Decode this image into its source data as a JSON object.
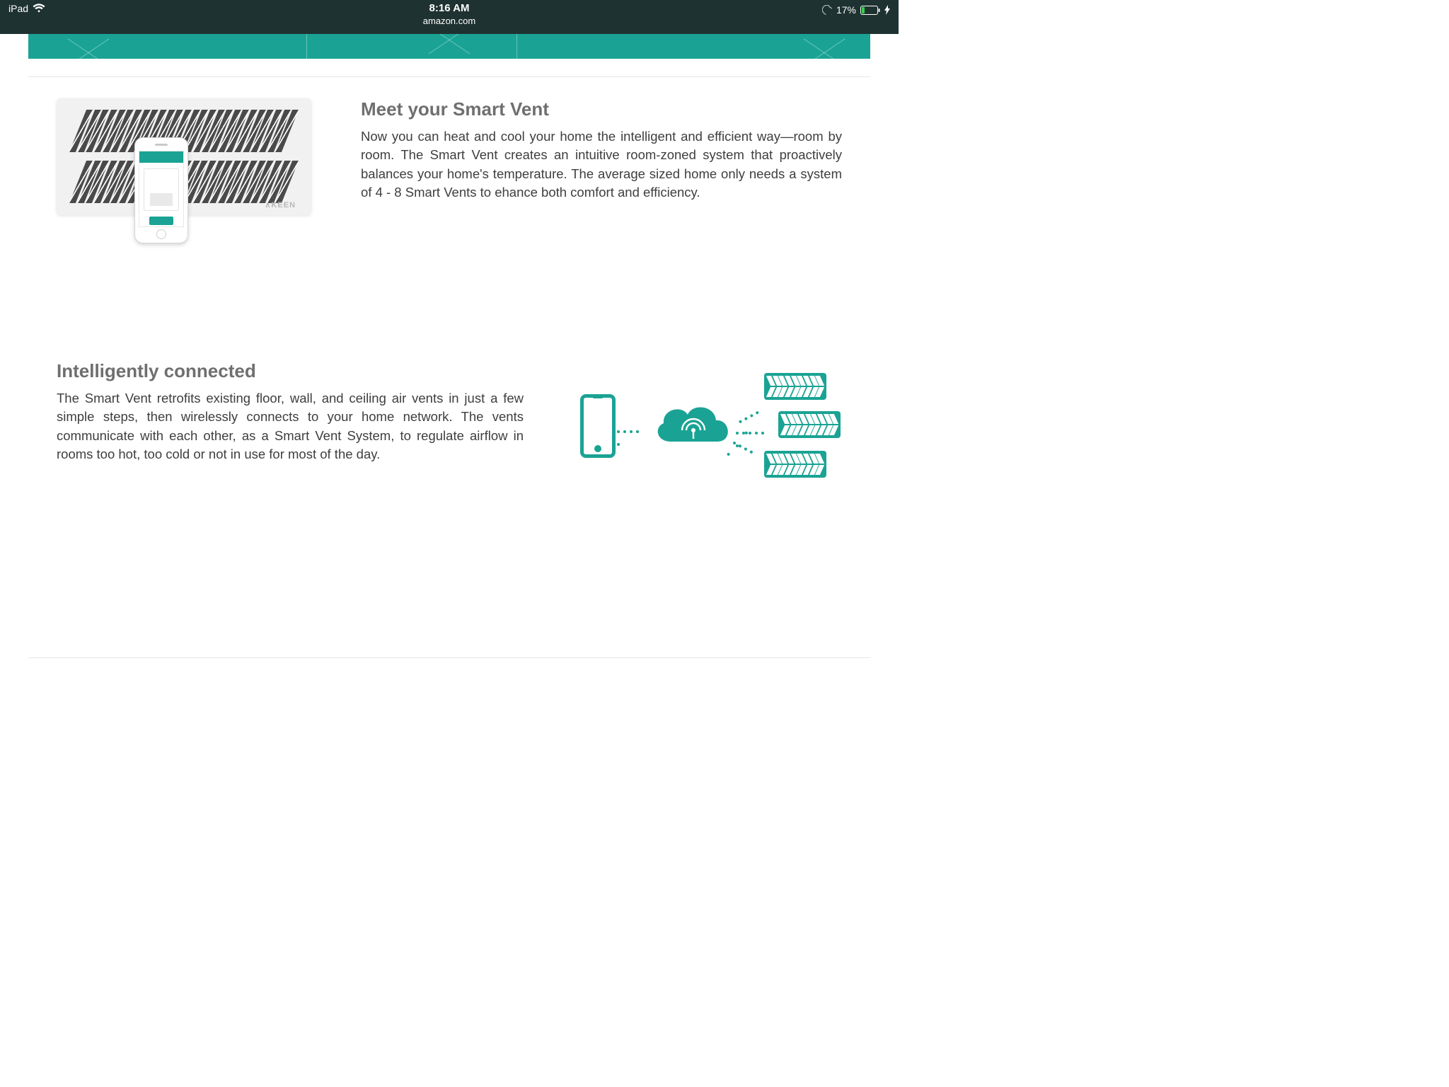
{
  "status_bar": {
    "device": "iPad",
    "time": "8:16 AM",
    "domain": "amazon.com",
    "battery_pct": "17%",
    "bg_color": "#1e3231",
    "fg_color": "#ffffff"
  },
  "accent_color": "#1aa394",
  "rule_color": "#e5e5e5",
  "section1": {
    "heading": "Meet your Smart Vent",
    "body": "Now you can heat and cool your home the intelligent and efficient way—room by room. The Smart Vent creates an intuitive room-zoned system that proactively balances your home's temperature. The average sized home only needs a system of 4 - 8 Smart Vents to ehance both comfort and efficiency.",
    "brand_mark": "∧KEEN",
    "heading_color": "#6f6f6f",
    "body_color": "#3e3e3e",
    "heading_fontsize": 26,
    "body_fontsize": 18.5
  },
  "section2": {
    "heading": "Intelligently connected",
    "body": "The Smart Vent retrofits existing floor, wall, and ceiling air vents in just a few simple steps, then wirelessly connects to your home network. The vents communicate with each other, as a Smart Vent System, to regulate airflow in rooms too hot, too cold or not in use for most of the day.",
    "heading_color": "#6f6f6f",
    "body_color": "#3e3e3e"
  },
  "diagram": {
    "type": "infographic",
    "color": "#1aa394",
    "nodes": [
      {
        "id": "phone",
        "label": "smartphone"
      },
      {
        "id": "cloud",
        "label": "wireless-cloud"
      },
      {
        "id": "vent1",
        "label": "smart-vent"
      },
      {
        "id": "vent2",
        "label": "smart-vent"
      },
      {
        "id": "vent3",
        "label": "smart-vent"
      }
    ],
    "edges": [
      {
        "from": "phone",
        "to": "cloud",
        "style": "dotted"
      },
      {
        "from": "cloud",
        "to": "vent1",
        "style": "dotted"
      },
      {
        "from": "cloud",
        "to": "vent2",
        "style": "dotted"
      },
      {
        "from": "cloud",
        "to": "vent3",
        "style": "dotted"
      }
    ]
  }
}
